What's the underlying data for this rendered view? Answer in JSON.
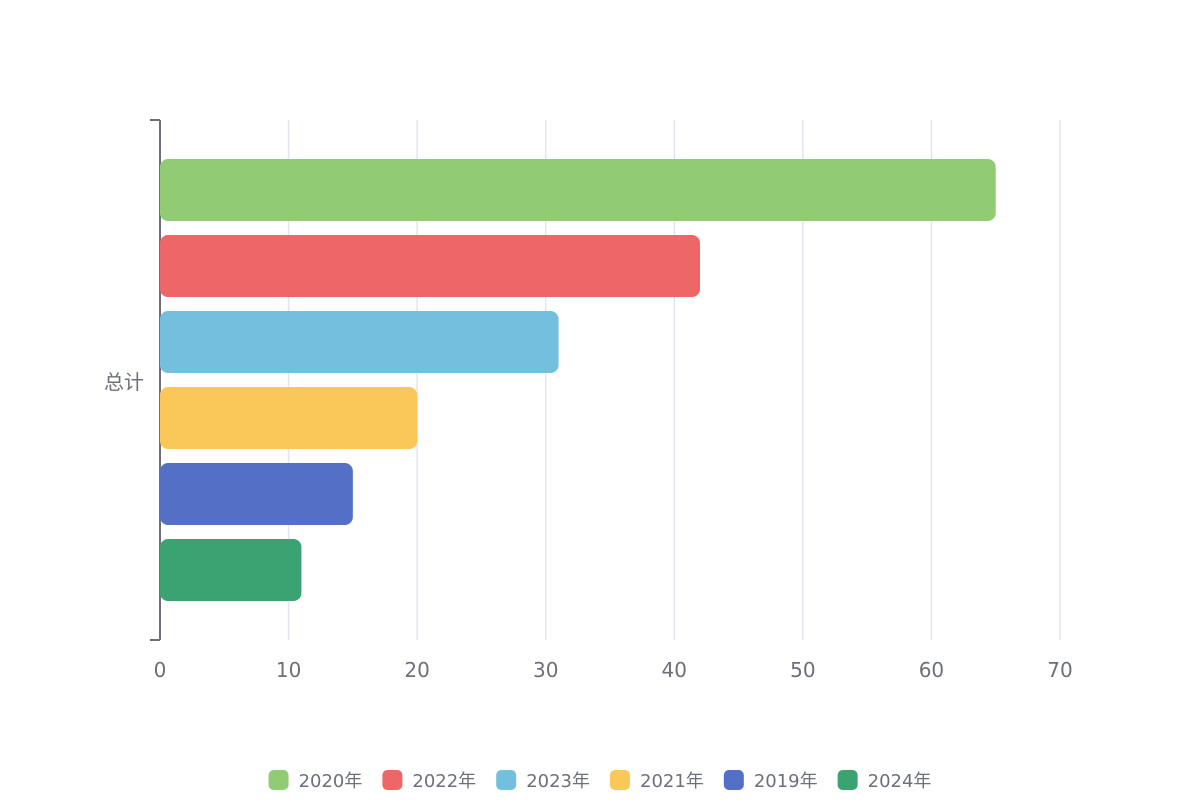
{
  "chart_data": {
    "type": "bar",
    "orientation": "horizontal",
    "categories": [
      "总计"
    ],
    "series": [
      {
        "name": "2020年",
        "values": [
          65
        ],
        "color": "#91cc75"
      },
      {
        "name": "2022年",
        "values": [
          42
        ],
        "color": "#ee6666"
      },
      {
        "name": "2023年",
        "values": [
          31
        ],
        "color": "#73c0de"
      },
      {
        "name": "2021年",
        "values": [
          20
        ],
        "color": "#fac858"
      },
      {
        "name": "2019年",
        "values": [
          15
        ],
        "color": "#5470c6"
      },
      {
        "name": "2024年",
        "values": [
          11
        ],
        "color": "#3ba272"
      }
    ],
    "xlim": [
      0,
      70
    ],
    "xticks": [
      0,
      10,
      20,
      30,
      40,
      50,
      60,
      70
    ],
    "grid": true,
    "legend": "bottom-center",
    "title": "",
    "xlabel": "",
    "ylabel": ""
  }
}
